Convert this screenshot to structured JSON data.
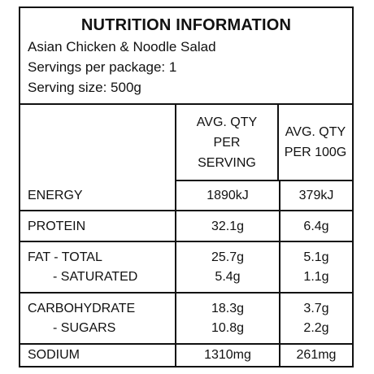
{
  "title": "NUTRITION INFORMATION",
  "product": "Asian Chicken & Noodle Salad",
  "servings_line": "Servings per package: 1",
  "serving_size_line": "Serving size: 500g",
  "columns": {
    "per_serving": "AVG. QTY PER SERVING",
    "per_100g": "AVG. QTY PER 100G"
  },
  "rows": {
    "energy": {
      "label": "ENERGY",
      "per_serving": "1890kJ",
      "per_100g": "379kJ"
    },
    "protein": {
      "label": "PROTEIN",
      "per_serving": "32.1g",
      "per_100g": "6.4g"
    },
    "fat_total": {
      "label": "FAT - TOTAL",
      "per_serving": "25.7g",
      "per_100g": "5.1g"
    },
    "saturated": {
      "label": "- SATURATED",
      "per_serving": "5.4g",
      "per_100g": "1.1g"
    },
    "carbohydrate": {
      "label": "CARBOHYDRATE",
      "per_serving": "18.3g",
      "per_100g": "3.7g"
    },
    "sugars": {
      "label": "- SUGARS",
      "per_serving": "10.8g",
      "per_100g": "2.2g"
    },
    "sodium": {
      "label": "SODIUM",
      "per_serving": "1310mg",
      "per_100g": "261mg"
    }
  }
}
